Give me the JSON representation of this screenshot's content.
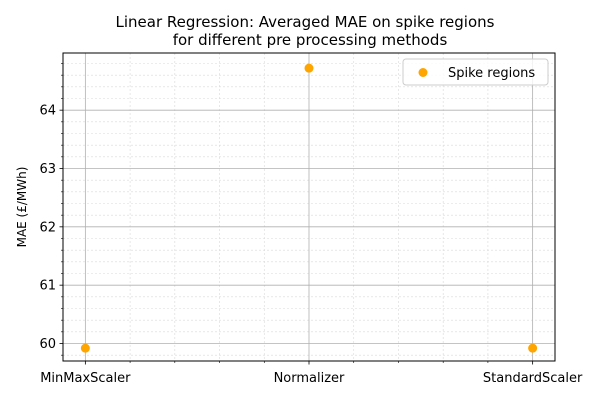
{
  "chart_data": {
    "type": "scatter",
    "title": "Linear Regression: Averaged MAE on spike regions",
    "subtitle": "for different pre processing methods",
    "xlabel": "",
    "ylabel": "MAE (£/MWh)",
    "categories": [
      "MinMaxScaler",
      "Normalizer",
      "StandardScaler"
    ],
    "series": [
      {
        "name": "Spike regions",
        "values": [
          59.92,
          64.72,
          59.92
        ],
        "color": "#ffa500"
      }
    ],
    "ylim": [
      59.7,
      64.98
    ],
    "yticks": [
      60,
      61,
      62,
      63,
      64
    ],
    "ytick_labels": [
      "60",
      "61",
      "62",
      "63",
      "64"
    ],
    "grid": true,
    "legend": "top-right"
  }
}
